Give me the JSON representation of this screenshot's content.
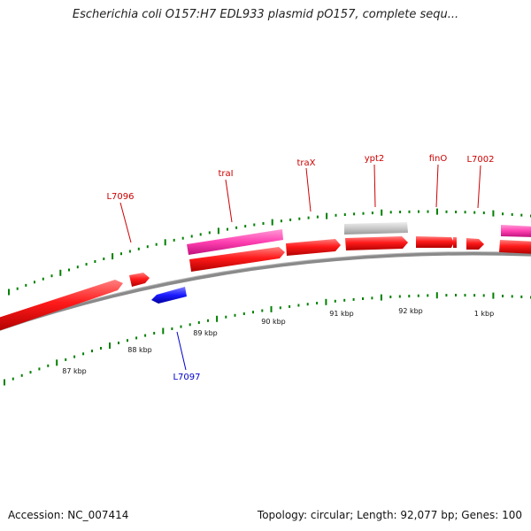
{
  "title": "Escherichia coli O157:H7 EDL933 plasmid pO157, complete sequ...",
  "footer": {
    "accession": "Accession: NC_007414",
    "summary": "Topology: circular; Length: 92,077 bp; Genes: 100"
  },
  "colors": {
    "forward_gene": "#ff1a1a",
    "reverse_gene": "#1a1aff",
    "pink_feature": "#ff3fb0",
    "grey_feature": "#c8c8c8",
    "ticks": "#008000",
    "backbone": "#808080",
    "label_red": "#cc0000",
    "label_blue": "#0000cc"
  },
  "gene_labels": [
    {
      "text": "L7096",
      "color": "red"
    },
    {
      "text": "traI",
      "color": "red"
    },
    {
      "text": "traX",
      "color": "red"
    },
    {
      "text": "ypt2",
      "color": "red"
    },
    {
      "text": "finO",
      "color": "red"
    },
    {
      "text": "L7002",
      "color": "red"
    },
    {
      "text": "L7097",
      "color": "blue"
    }
  ],
  "tick_labels": [
    "87 kbp",
    "88 kbp",
    "89 kbp",
    "90 kbp",
    "91 kbp",
    "92 kbp",
    "1 kbp"
  ]
}
